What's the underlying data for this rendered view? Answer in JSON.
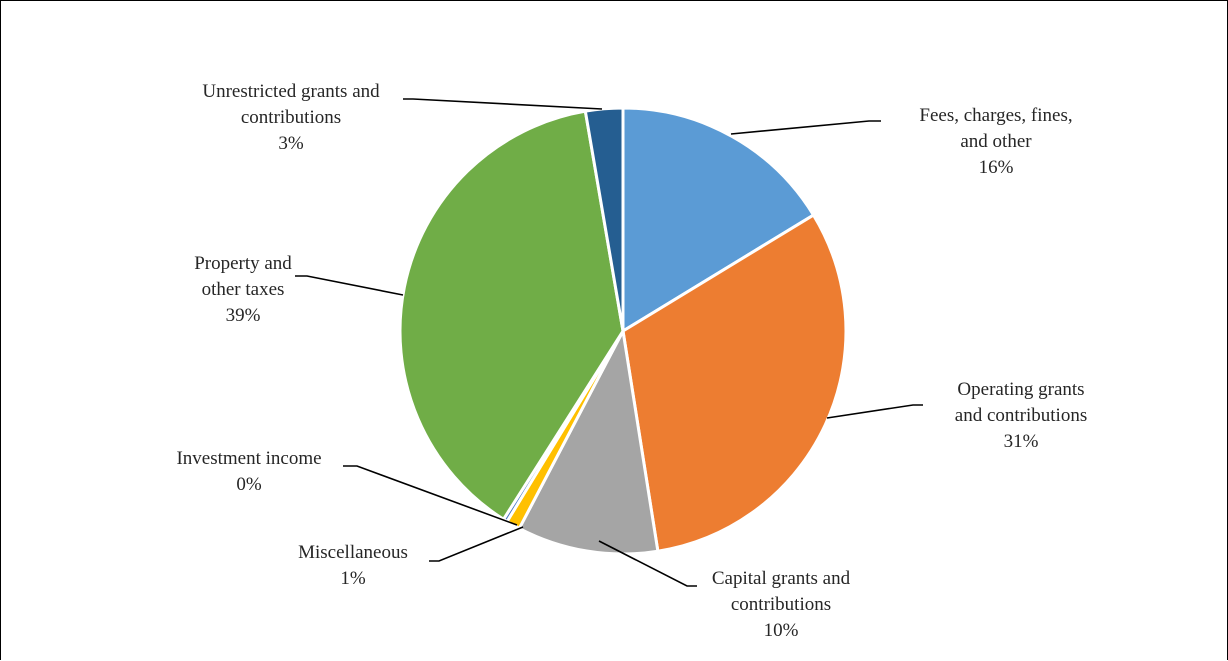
{
  "chart_data": {
    "type": "pie",
    "title": "",
    "start_angle_deg": 0,
    "direction": "clockwise",
    "legend": "none",
    "slices": [
      {
        "name": "Fees, charges, fines, and other",
        "label_lines": [
          "Fees, charges, fines,",
          "and other"
        ],
        "percent_label": "16%",
        "value": 16.3,
        "color": "#5B9BD5"
      },
      {
        "name": "Operating grants and contributions",
        "label_lines": [
          "Operating grants",
          "and contributions"
        ],
        "percent_label": "31%",
        "value": 31.2,
        "color": "#ED7D31"
      },
      {
        "name": "Capital grants and contributions",
        "label_lines": [
          "Capital grants and",
          "contributions"
        ],
        "percent_label": "10%",
        "value": 10.2,
        "color": "#A5A5A5"
      },
      {
        "name": "Miscellaneous",
        "label_lines": [
          "Miscellaneous"
        ],
        "percent_label": "1%",
        "value": 1.0,
        "color": "#FFC000"
      },
      {
        "name": "Investment income",
        "label_lines": [
          "Investment income"
        ],
        "percent_label": "0%",
        "value": 0.3,
        "color": "#4472C4"
      },
      {
        "name": "Property and other taxes",
        "label_lines": [
          "Property and",
          "other taxes"
        ],
        "percent_label": "39%",
        "value": 38.3,
        "color": "#70AD47"
      },
      {
        "name": "Unrestricted grants and contributions",
        "label_lines": [
          "Unrestricted grants and",
          "contributions"
        ],
        "percent_label": "3%",
        "value": 2.7,
        "color": "#255E91"
      }
    ]
  }
}
